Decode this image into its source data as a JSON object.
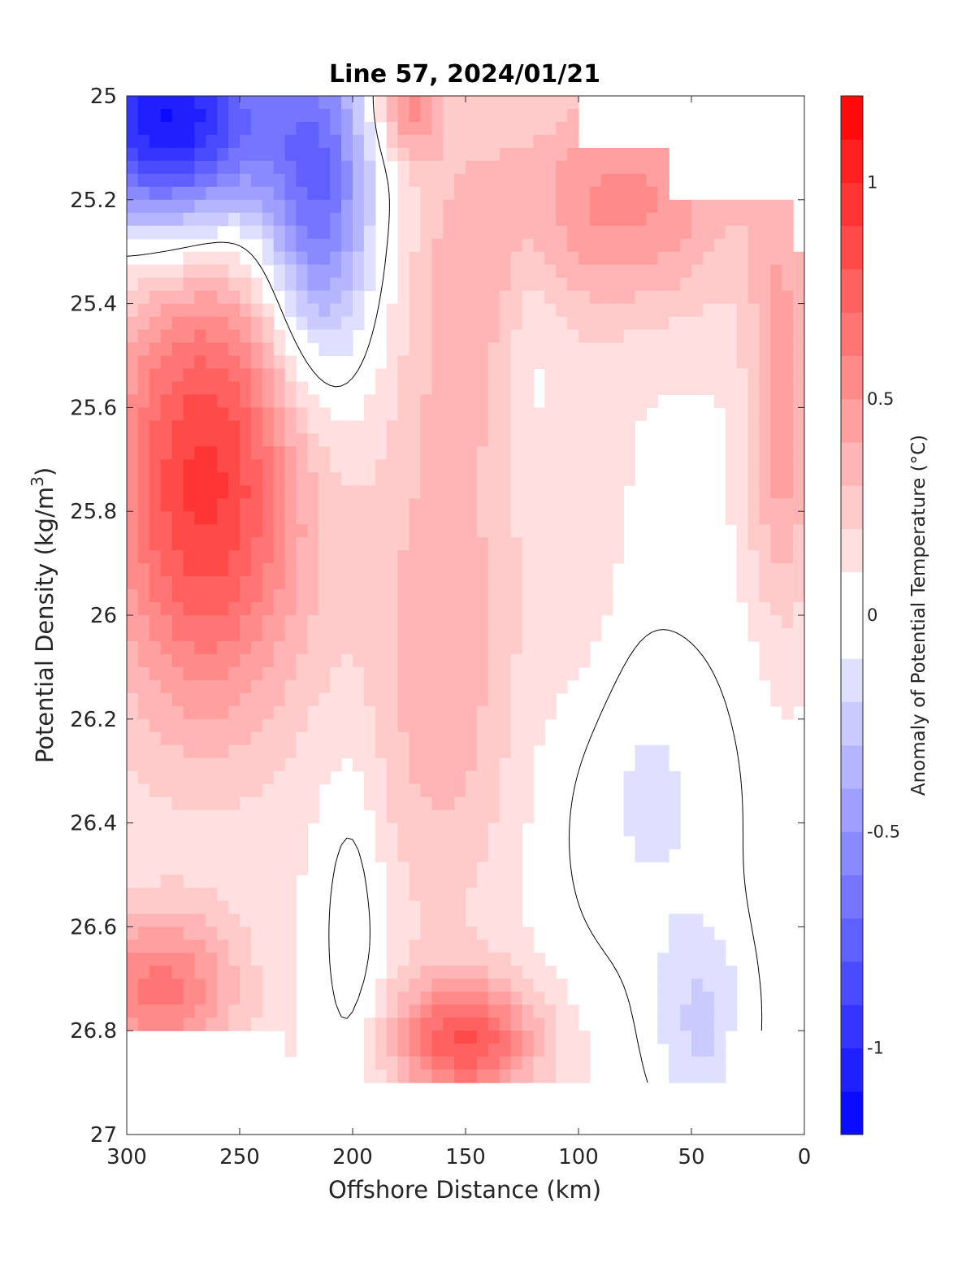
{
  "chart_data": {
    "type": "contour",
    "title": "Line 57, 2024/01/21",
    "xlabel": "Offshore Distance (km)",
    "ylabel": "Potential Density (kg/m^3)",
    "ylabel_main": "Potential Density (kg/m",
    "ylabel_sup": "3",
    "ylabel_close": ")",
    "colorbar_label": "Anomaly of Potential Temperature (°C)",
    "xlim": [
      300,
      0
    ],
    "ylim": [
      27,
      25
    ],
    "x_reversed": true,
    "y_reversed": true,
    "xticks": [
      300,
      250,
      200,
      150,
      100,
      50,
      0
    ],
    "yticks": [
      25,
      25.2,
      25.4,
      25.6,
      25.8,
      26,
      26.2,
      26.4,
      26.6,
      26.8,
      27
    ],
    "ytick_labels": [
      "25",
      "25.2",
      "25.4",
      "25.6",
      "25.8",
      "26",
      "26.2",
      "26.4",
      "26.6",
      "26.8",
      "27"
    ],
    "colorbar_range": [
      -1.2,
      1.2
    ],
    "colorbar_levels_step": 0.1,
    "colorbar_ticks": [
      -1,
      -0.5,
      0,
      0.5,
      1
    ],
    "colorbar_tick_labels": [
      "-1",
      "-0.5",
      "0",
      "0.5",
      "1"
    ],
    "colormap": "blue-white-red",
    "colors": {
      "negative": "#0000ff",
      "zero": "#ffffff",
      "positive": "#ff0000",
      "zero_contour": "#000000"
    },
    "grid": false,
    "features": [
      {
        "label": "cold core top-left",
        "x": 275,
        "y": 25.05,
        "value": -1.0
      },
      {
        "label": "cold lens",
        "x": 215,
        "y": 25.2,
        "value": -0.6
      },
      {
        "label": "warm core",
        "x": 262,
        "y": 25.75,
        "value": 0.85
      },
      {
        "label": "warm band",
        "x": 160,
        "y": 26.1,
        "value": 0.35
      },
      {
        "label": "deep warm patch",
        "x": 150,
        "y": 26.8,
        "value": 0.7
      },
      {
        "label": "shallow warm nearshore",
        "x": 80,
        "y": 25.15,
        "value": 0.5
      },
      {
        "label": "weak cold deep nearshore",
        "x": 40,
        "y": 26.8,
        "value": -0.2
      }
    ]
  }
}
